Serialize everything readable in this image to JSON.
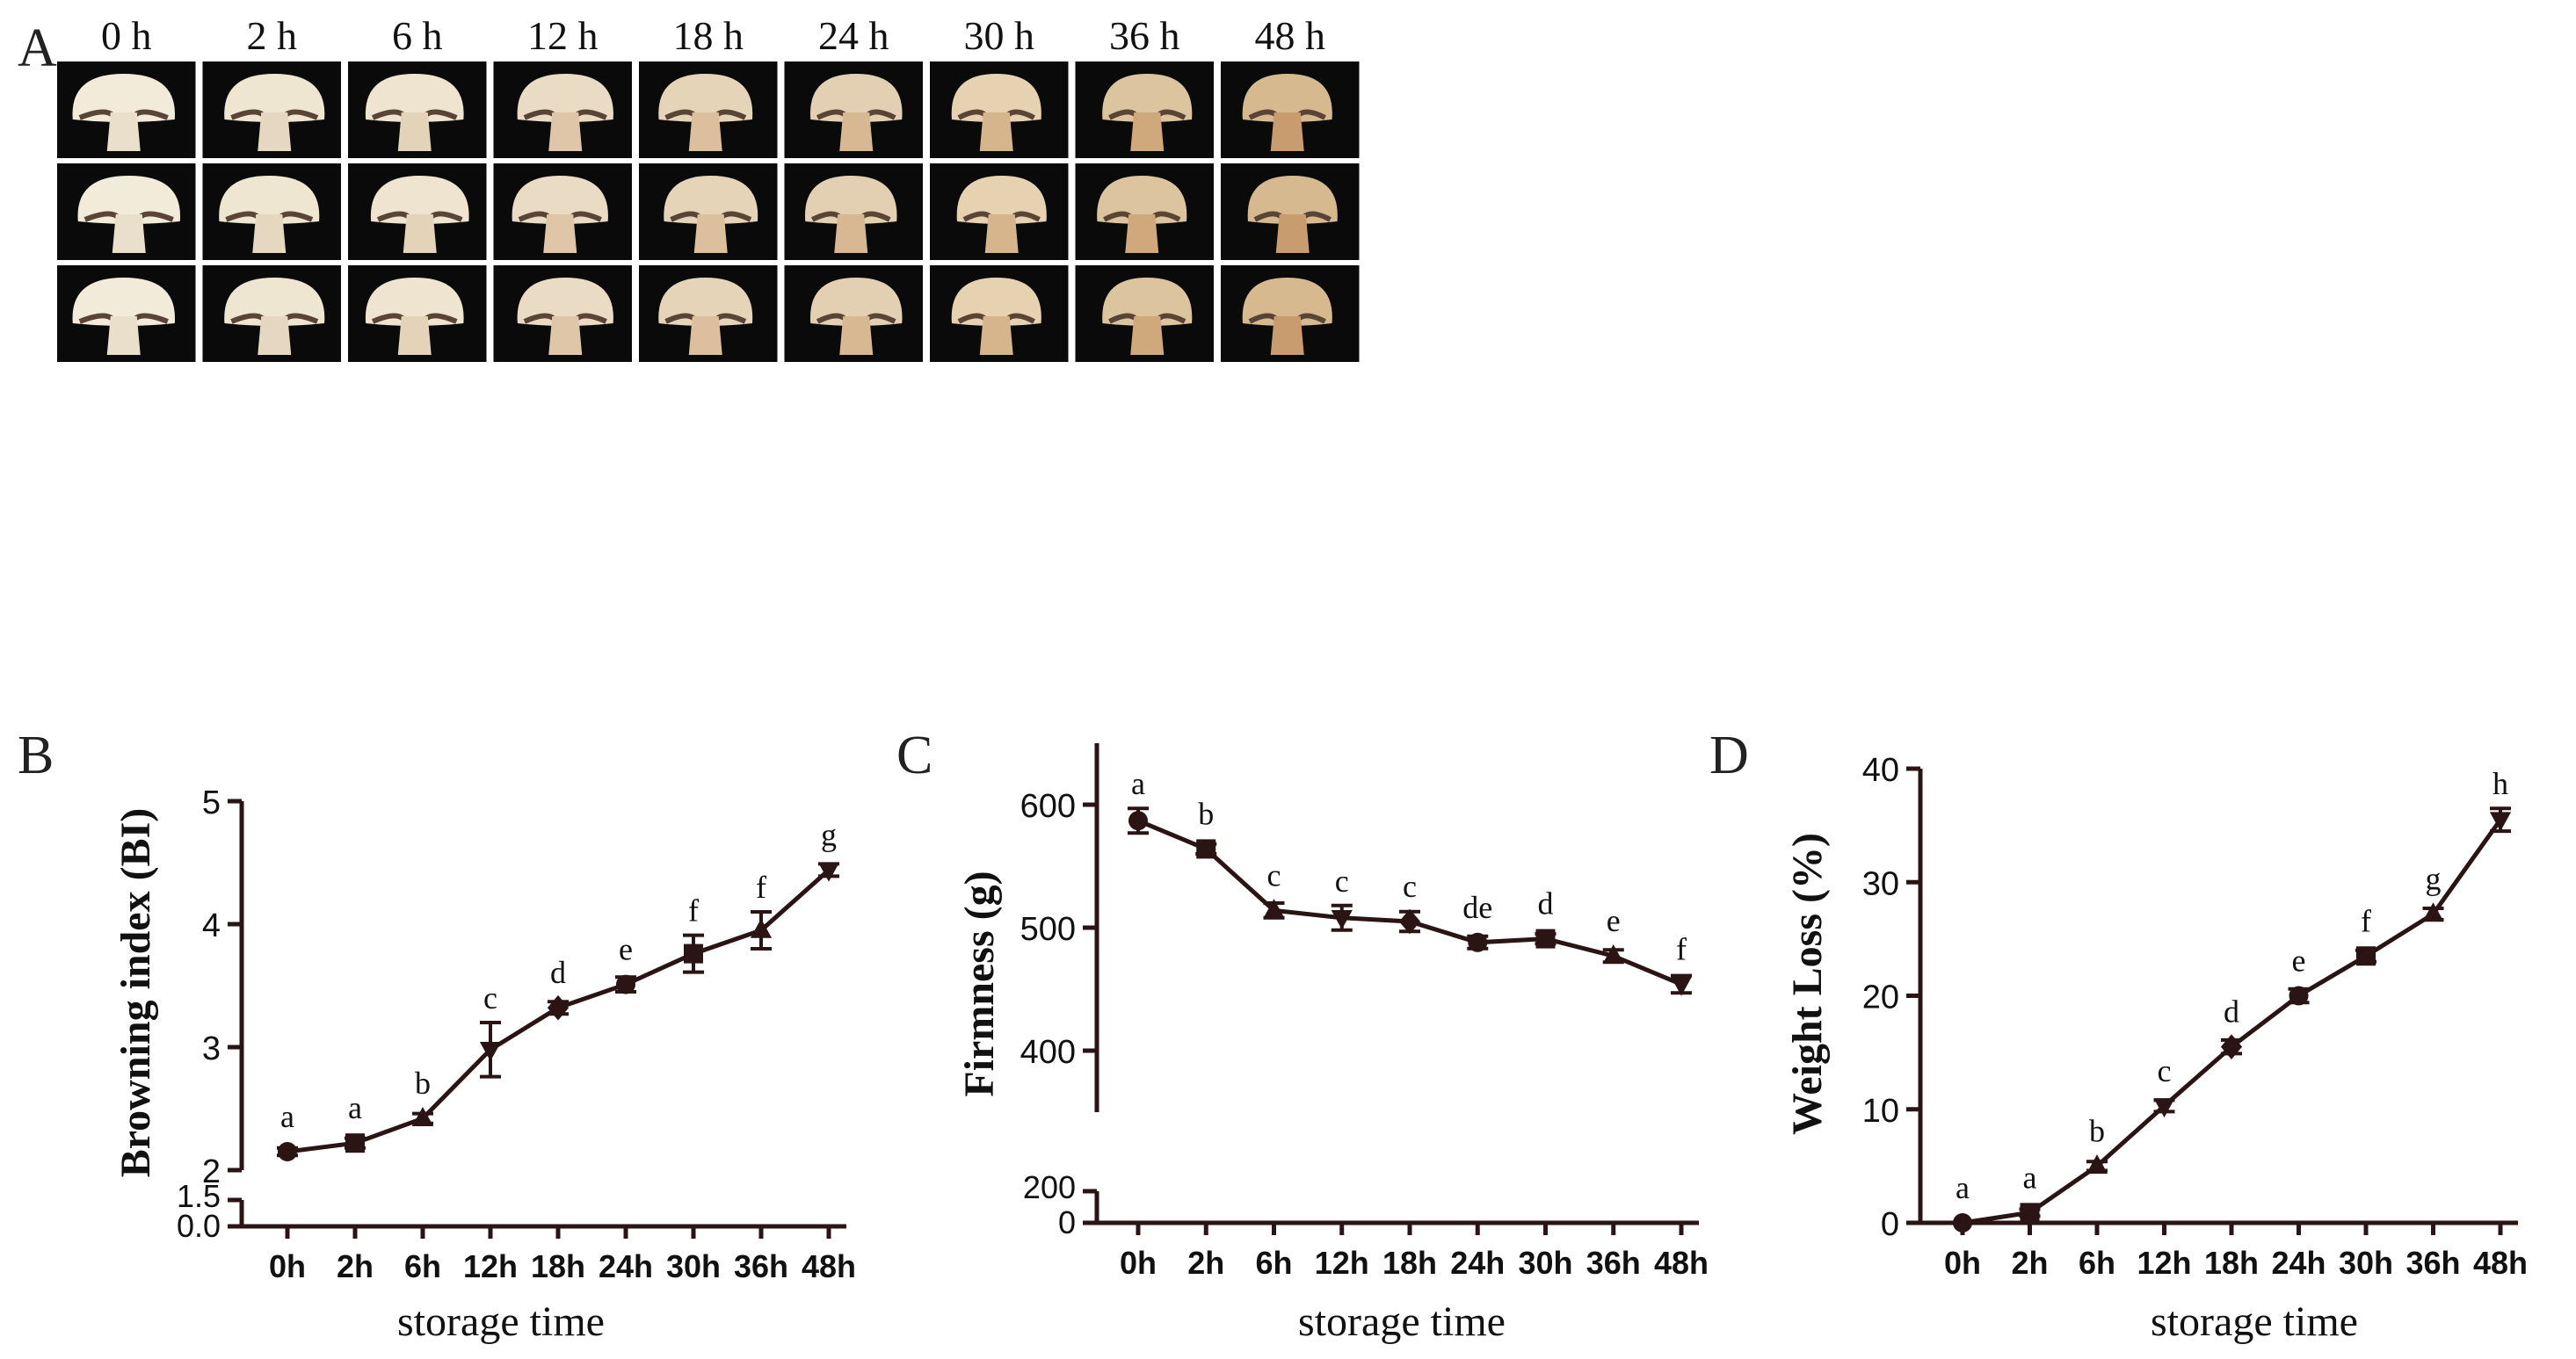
{
  "panelA": {
    "letter": "A",
    "time_labels": [
      "0 h",
      "2 h",
      "6 h",
      "12 h",
      "18 h",
      "24 h",
      "30 h",
      "36 h",
      "48 h"
    ],
    "rows": 3,
    "photo_background": "#0a0a0a",
    "cap_colors": [
      "#f3ebda",
      "#efe6d2",
      "#efe4cf",
      "#eadcc4",
      "#e6d4b8",
      "#e3d0b2",
      "#e6d2b0",
      "#dcc49e",
      "#d6b98e"
    ],
    "stipe_colors": [
      "#eadfca",
      "#e6d8c0",
      "#e3d3b8",
      "#dfc6a8",
      "#dcbf9c",
      "#d7b892",
      "#d6b48c",
      "#cfa87c",
      "#c89c6e"
    ],
    "gill_color": "#5a4436"
  },
  "charts": {
    "x_categories": [
      "0h",
      "2h",
      "6h",
      "12h",
      "18h",
      "24h",
      "30h",
      "36h",
      "48h"
    ],
    "line_color": "#2a1414"
  },
  "chart_data": [
    {
      "panel": "B",
      "type": "line",
      "title": "",
      "xlabel": "storage time",
      "ylabel": "Browning index (BI)",
      "categories": [
        "0h",
        "2h",
        "6h",
        "12h",
        "18h",
        "24h",
        "30h",
        "36h",
        "48h"
      ],
      "values": [
        2.15,
        2.22,
        2.42,
        2.98,
        3.32,
        3.51,
        3.76,
        3.95,
        4.44
      ],
      "errors": [
        0.03,
        0.04,
        0.04,
        0.22,
        0.05,
        0.06,
        0.15,
        0.15,
        0.05
      ],
      "letters": [
        "a",
        "a",
        "b",
        "c",
        "d",
        "e",
        "f",
        "f",
        "g"
      ],
      "markers": [
        "circle",
        "square",
        "triangle-up",
        "triangle-down",
        "diamond",
        "circle",
        "square",
        "triangle-up",
        "triangle-down"
      ],
      "ylim": [
        2,
        5
      ],
      "yticks": [
        "2",
        "3",
        "4",
        "5"
      ],
      "broken_axis_ticks": [
        "1.5",
        "0.0"
      ]
    },
    {
      "panel": "C",
      "type": "line",
      "title": "",
      "xlabel": "storage time",
      "ylabel": "Firmness (g)",
      "categories": [
        "0h",
        "2h",
        "6h",
        "12h",
        "18h",
        "24h",
        "30h",
        "36h",
        "48h"
      ],
      "values": [
        587,
        564,
        514,
        508,
        505,
        488,
        491,
        477,
        454
      ],
      "errors": [
        10,
        4,
        6,
        10,
        8,
        5,
        4,
        5,
        7
      ],
      "letters": [
        "a",
        "b",
        "c",
        "c",
        "c",
        "de",
        "d",
        "e",
        "f"
      ],
      "markers": [
        "circle",
        "square",
        "triangle-up",
        "triangle-down",
        "diamond",
        "circle",
        "square",
        "triangle-up",
        "triangle-down"
      ],
      "ylim": [
        350,
        650
      ],
      "yticks": [
        "400",
        "500",
        "600"
      ],
      "broken_axis_ticks": [
        "200",
        "0"
      ]
    },
    {
      "panel": "D",
      "type": "line",
      "title": "",
      "xlabel": "storage time",
      "ylabel": "Weight Loss (%)",
      "categories": [
        "0h",
        "2h",
        "6h",
        "12h",
        "18h",
        "24h",
        "30h",
        "36h",
        "48h"
      ],
      "values": [
        0.0,
        0.9,
        5.0,
        10.3,
        15.5,
        20.0,
        23.5,
        27.2,
        35.5
      ],
      "errors": [
        0.1,
        0.3,
        0.4,
        0.5,
        0.6,
        0.6,
        0.5,
        0.5,
        1.0
      ],
      "letters": [
        "a",
        "a",
        "b",
        "c",
        "d",
        "e",
        "f",
        "g",
        "h"
      ],
      "markers": [
        "circle",
        "square",
        "triangle-up",
        "triangle-down",
        "diamond",
        "circle",
        "square",
        "triangle-up",
        "triangle-down"
      ],
      "ylim": [
        0,
        40
      ],
      "yticks": [
        "0",
        "10",
        "20",
        "30",
        "40"
      ]
    }
  ]
}
